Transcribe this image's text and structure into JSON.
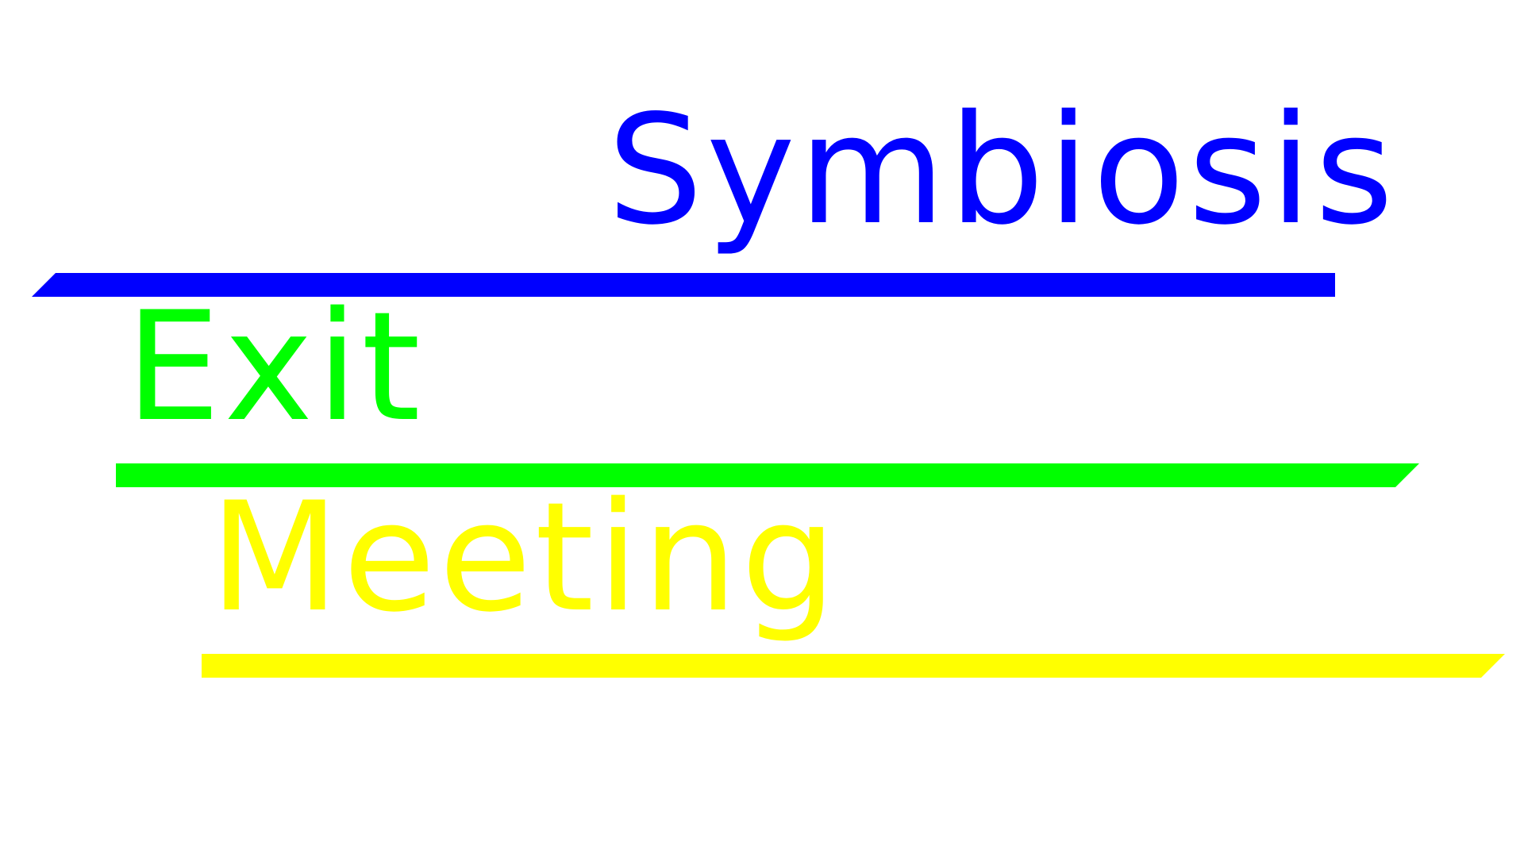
{
  "words": {
    "first": "Symbiosis",
    "second": "Exit",
    "third": "Meeting"
  },
  "colors": {
    "first": "#0000ff",
    "second": "#00ff00",
    "third": "#ffff00",
    "background": "#ffffff"
  }
}
